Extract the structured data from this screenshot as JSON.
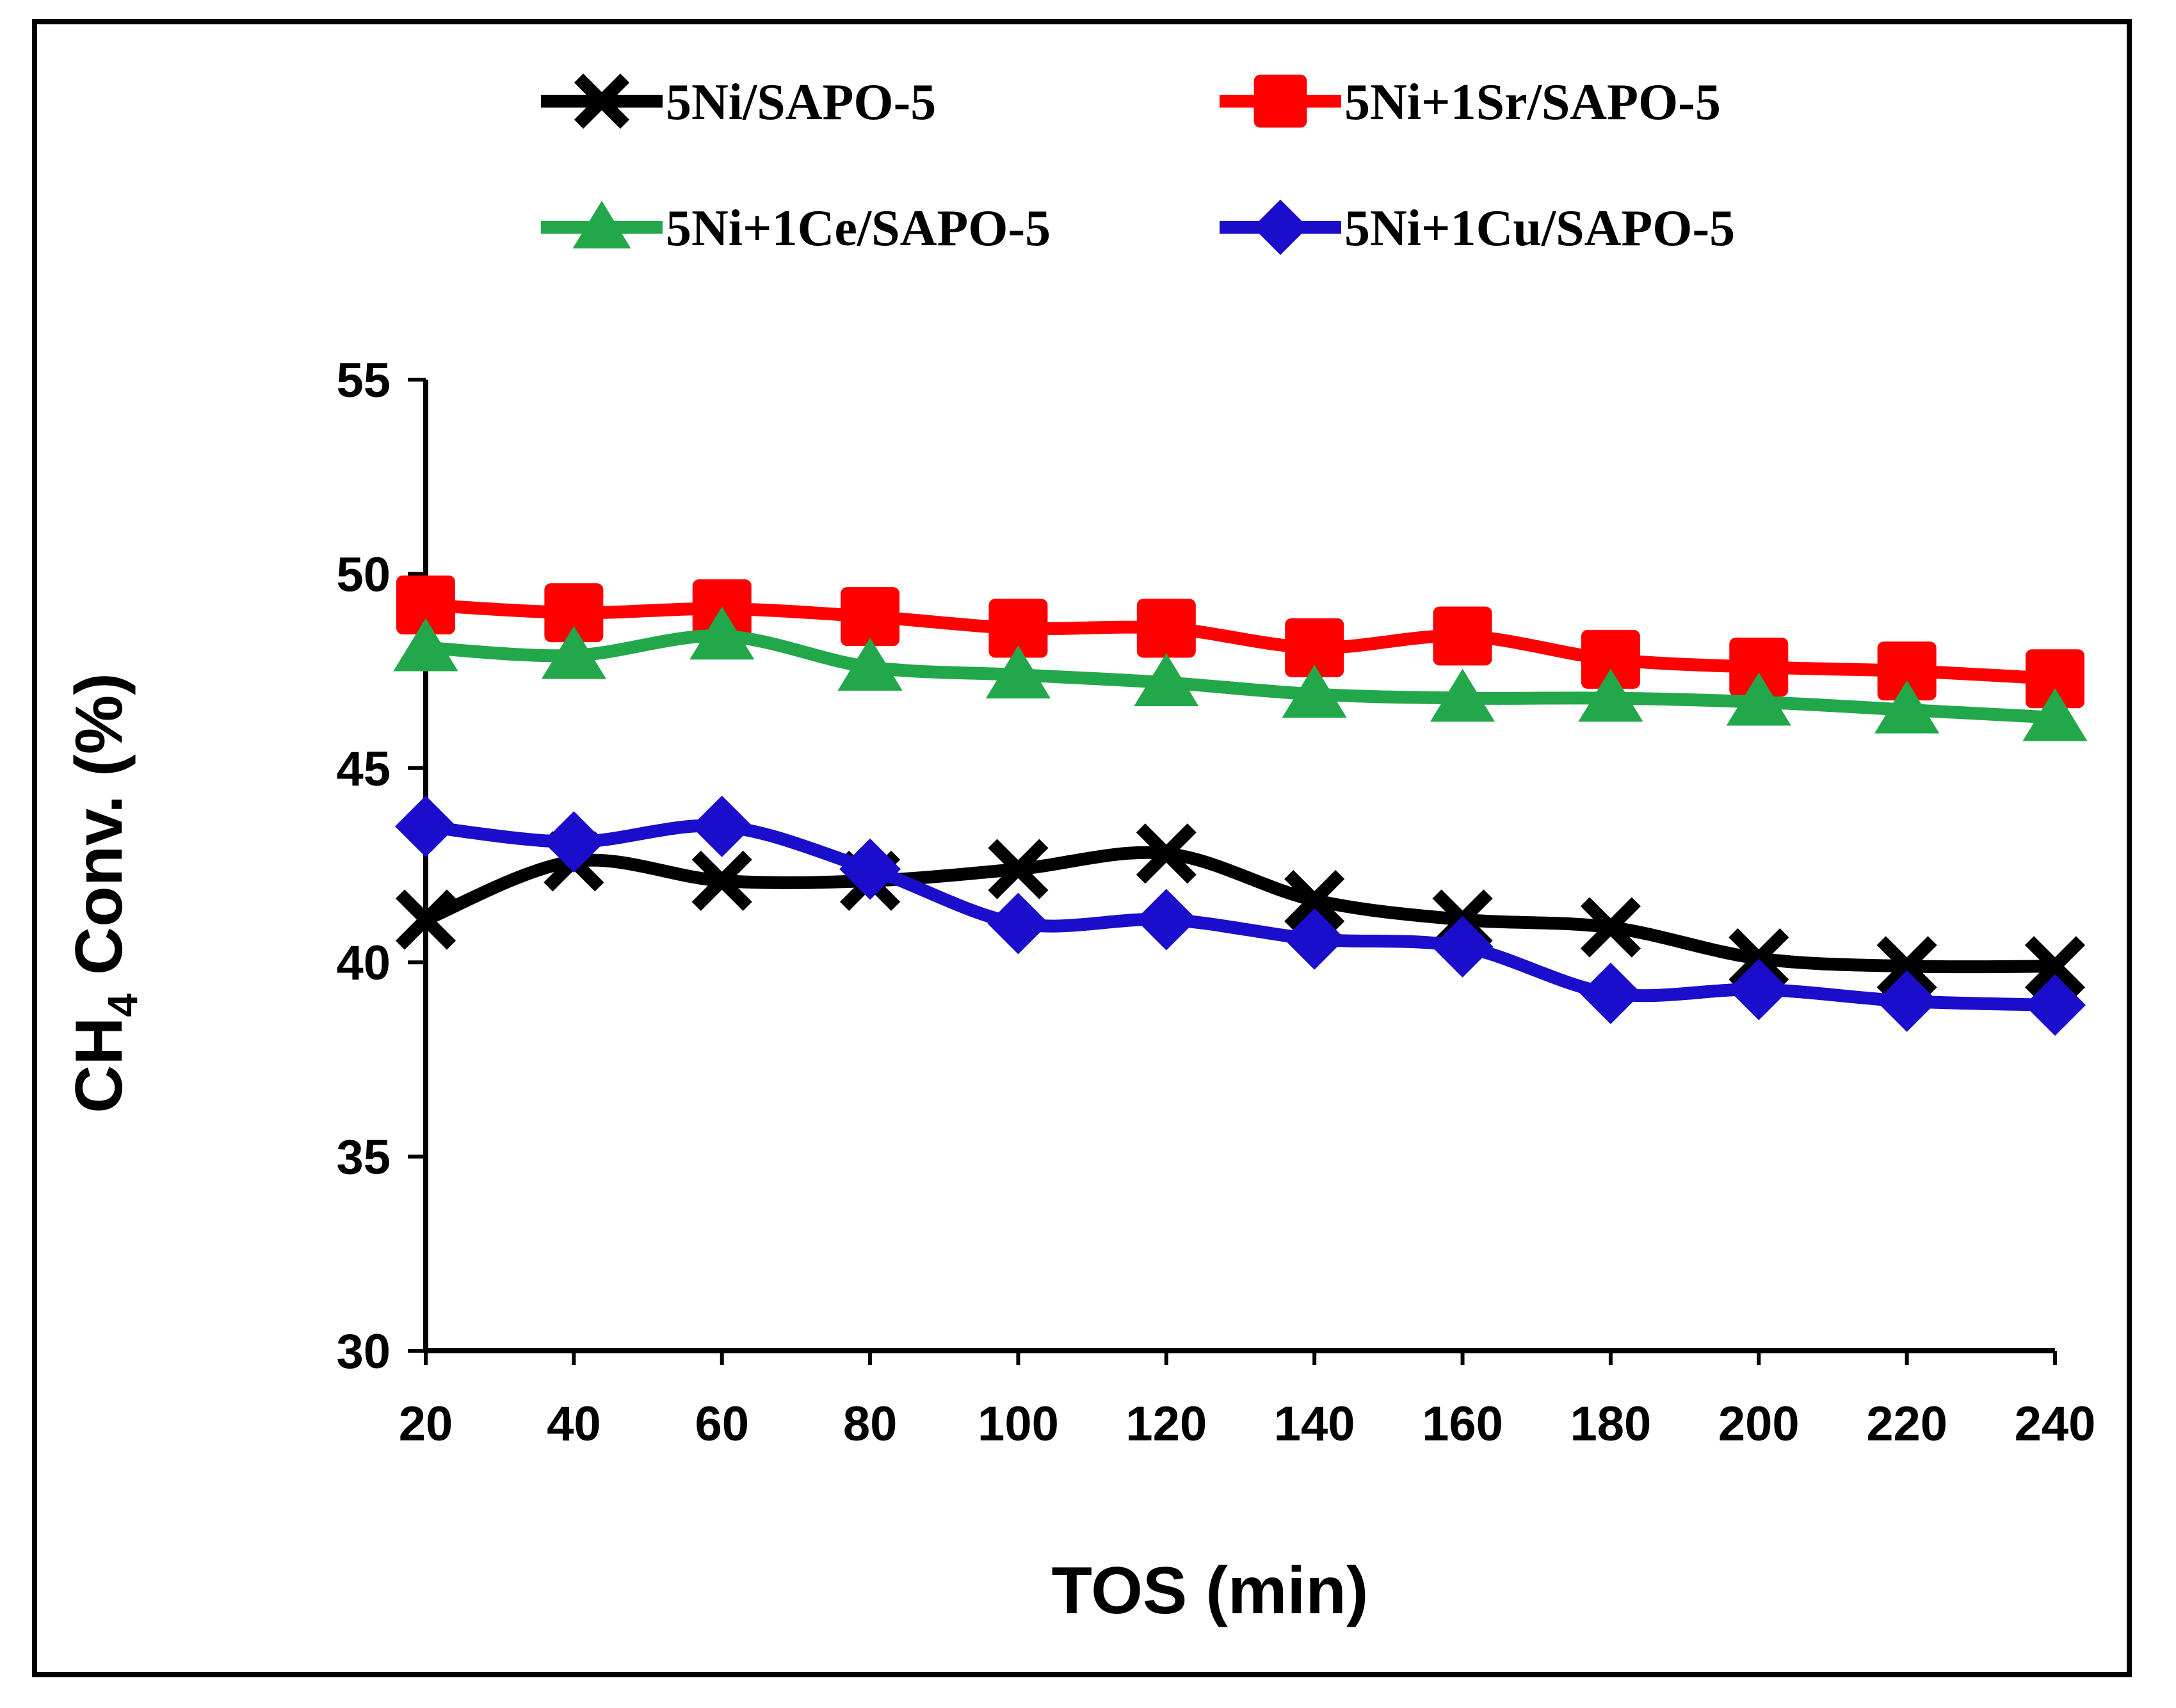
{
  "chart_data": {
    "type": "line",
    "title": "",
    "xlabel": "TOS (min)",
    "ylabel_main": "CH",
    "ylabel_sub": "4",
    "ylabel_rest": " Conv. (%)",
    "x": [
      20,
      40,
      60,
      80,
      100,
      120,
      140,
      160,
      180,
      200,
      220,
      240
    ],
    "xlim": [
      20,
      240
    ],
    "ylim": [
      30,
      55
    ],
    "xticks": [
      "20",
      "40",
      "60",
      "80",
      "100",
      "120",
      "140",
      "160",
      "180",
      "200",
      "220",
      "240"
    ],
    "yticks": [
      "30",
      "35",
      "40",
      "45",
      "50",
      "55"
    ],
    "grid": false,
    "legend_position": "top",
    "series": [
      {
        "name": "5Ni/SAPO-5",
        "color": "#000000",
        "marker": "x",
        "values": [
          41.1,
          42.6,
          42.1,
          42.1,
          42.4,
          42.8,
          41.6,
          41.1,
          40.9,
          40.1,
          39.9,
          39.9
        ]
      },
      {
        "name": "5Ni+1Sr/SAPO-5",
        "color": "#ff0000",
        "marker": "square",
        "values": [
          49.2,
          49.0,
          49.1,
          48.9,
          48.6,
          48.6,
          48.1,
          48.4,
          47.8,
          47.6,
          47.5,
          47.3
        ]
      },
      {
        "name": "5Ni+1Ce/SAPO-5",
        "color": "#22a84a",
        "marker": "triangle",
        "values": [
          48.1,
          47.9,
          48.4,
          47.6,
          47.4,
          47.2,
          46.9,
          46.8,
          46.8,
          46.7,
          46.5,
          46.3
        ]
      },
      {
        "name": "5Ni+1Cu/SAPO-5",
        "color": "#1a0dcc",
        "marker": "diamond",
        "values": [
          43.5,
          43.1,
          43.5,
          42.4,
          41.0,
          41.1,
          40.6,
          40.4,
          39.2,
          39.3,
          39.0,
          38.9
        ]
      }
    ]
  }
}
